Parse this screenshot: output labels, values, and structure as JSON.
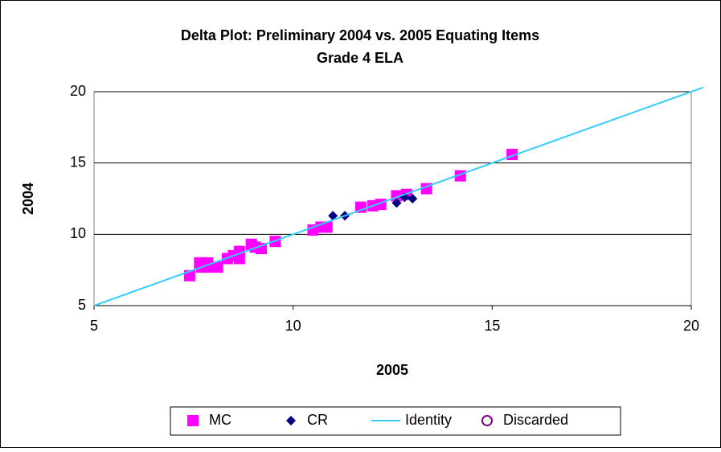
{
  "chart_data": {
    "type": "scatter",
    "title": "Delta Plot: Preliminary 2004 vs. 2005 Equating Items",
    "subtitle": "Grade 4 ELA",
    "x_label": "2005",
    "y_label": "2004",
    "xlim": [
      5,
      20
    ],
    "ylim": [
      5,
      20
    ],
    "xticks": [
      5,
      10,
      15,
      20
    ],
    "yticks": [
      5,
      10,
      15,
      20
    ],
    "grid": true,
    "legend": "bottom",
    "series": [
      {
        "name": "MC",
        "color": "#ff00ff",
        "marker": "square",
        "x": [
          7.4,
          7.65,
          7.85,
          7.7,
          7.9,
          8.1,
          8.35,
          8.5,
          8.65,
          8.65,
          8.95,
          9.05,
          9.2,
          9.55,
          10.5,
          10.7,
          10.85,
          11.7,
          12.0,
          12.2,
          12.6,
          12.85,
          13.35,
          14.2,
          15.5
        ],
        "values": [
          7.1,
          8.0,
          8.0,
          7.7,
          7.7,
          7.7,
          8.3,
          8.5,
          8.8,
          8.3,
          9.3,
          9.1,
          9.0,
          9.5,
          10.3,
          10.5,
          10.5,
          11.9,
          12.0,
          12.1,
          12.7,
          12.8,
          13.2,
          14.1,
          15.6
        ]
      },
      {
        "name": "CR",
        "color": "#000080",
        "marker": "diamond",
        "x": [
          11.0,
          11.3,
          12.6,
          12.8,
          13.0
        ],
        "values": [
          11.3,
          11.3,
          12.2,
          12.6,
          12.5
        ]
      },
      {
        "name": "Identity",
        "color": "#33ccff",
        "marker": "line",
        "x": [
          5,
          20.3
        ],
        "values": [
          5,
          20.3
        ]
      },
      {
        "name": "Discarded",
        "color": "#800080",
        "marker": "circle",
        "x": [],
        "values": []
      }
    ]
  }
}
